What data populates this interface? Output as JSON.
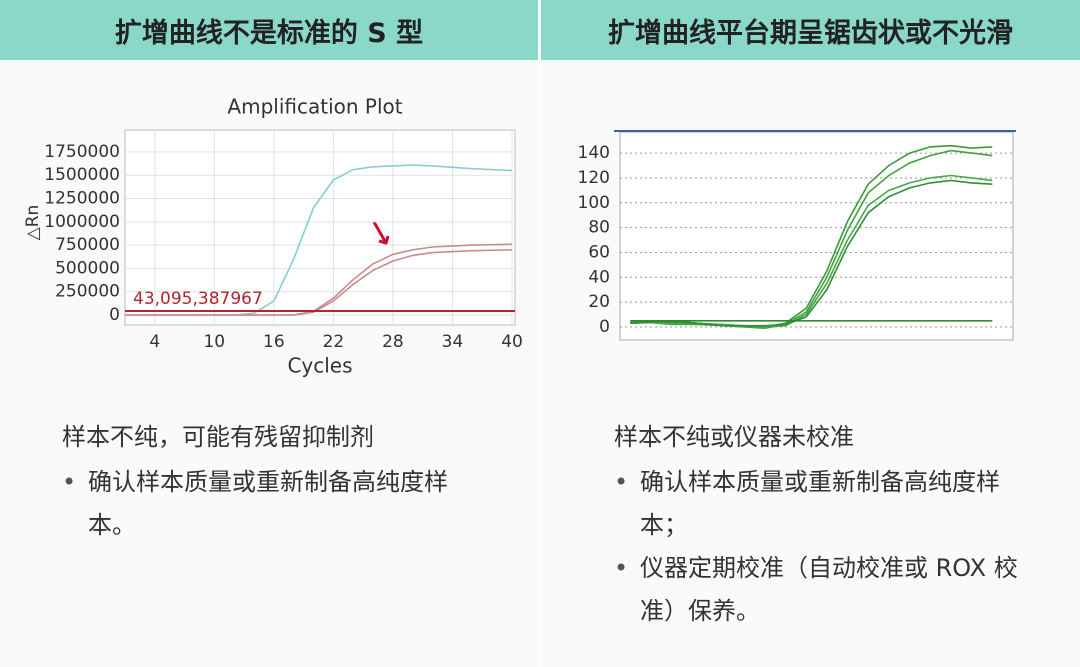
{
  "panels": [
    {
      "header": "扩增曲线不是标准的 S 型",
      "problem": "样本不纯，可能有残留抑制剂",
      "bullets": [
        "确认样本质量或重新制备高纯度样本。"
      ]
    },
    {
      "header": "扩增曲线平台期呈锯齿状或不光滑",
      "problem": "样本不纯或仪器未校准",
      "bullets": [
        "确认样本质量或重新制备高纯度样本；",
        "仪器定期校准（自动校准或 ROX 校准）保养。"
      ]
    }
  ],
  "chart_data": [
    {
      "type": "line",
      "title": "Amplification Plot",
      "x_label": "Cycles",
      "y_label": "△Rn",
      "xlim": [
        1,
        40.3
      ],
      "xticks": [
        4,
        10,
        16,
        22,
        28,
        34,
        40
      ],
      "ylim": [
        -107000,
        1985000
      ],
      "yticks": [
        0,
        250000,
        500000,
        750000,
        1000000,
        1250000,
        1500000,
        1750000
      ],
      "grid": true,
      "grid_style": "solid",
      "threshold": {
        "value": 43095.387967,
        "label": "43,095,387967",
        "color": "#b0262f"
      },
      "series": [
        {
          "color": "#86cdd3",
          "x": [
            1,
            4,
            8,
            12,
            14,
            16,
            18,
            20,
            22,
            24,
            26,
            28,
            30,
            32,
            36,
            40
          ],
          "values": [
            0,
            0,
            0,
            0,
            20000,
            150000,
            600000,
            1150000,
            1450000,
            1560000,
            1590000,
            1600000,
            1610000,
            1600000,
            1570000,
            1550000
          ]
        },
        {
          "color": "#c98a90",
          "x": [
            1,
            4,
            8,
            12,
            14,
            16,
            18,
            20,
            22,
            24,
            26,
            28,
            30,
            32,
            36,
            40
          ],
          "values": [
            0,
            0,
            0,
            0,
            0,
            0,
            0,
            30000,
            150000,
            330000,
            480000,
            580000,
            640000,
            670000,
            690000,
            700000
          ]
        },
        {
          "color": "#c98a90",
          "x": [
            1,
            4,
            8,
            12,
            14,
            16,
            18,
            20,
            22,
            24,
            26,
            28,
            30,
            32,
            36,
            40
          ],
          "values": [
            0,
            0,
            0,
            0,
            0,
            0,
            0,
            40000,
            180000,
            380000,
            550000,
            650000,
            700000,
            730000,
            750000,
            760000
          ]
        }
      ]
    },
    {
      "type": "line",
      "xlim": [
        0,
        38
      ],
      "ylim": [
        -10.5,
        157
      ],
      "yticks": [
        0,
        20,
        40,
        60,
        80,
        100,
        120,
        140
      ],
      "grid": true,
      "grid_style": "dotted",
      "series": [
        {
          "color": "#3a9a3a",
          "x": [
            1,
            5,
            10,
            14,
            16,
            18,
            20,
            22,
            24,
            26,
            28,
            30,
            32,
            34,
            36
          ],
          "values": [
            3,
            4,
            2,
            0,
            3,
            15,
            45,
            85,
            115,
            130,
            140,
            145,
            146,
            144,
            145
          ]
        },
        {
          "color": "#3fa340",
          "x": [
            1,
            5,
            10,
            14,
            16,
            18,
            20,
            22,
            24,
            26,
            28,
            30,
            32,
            34,
            36
          ],
          "values": [
            4,
            3,
            1,
            -1,
            2,
            12,
            40,
            78,
            108,
            122,
            132,
            138,
            142,
            140,
            138
          ]
        },
        {
          "color": "#48a848",
          "x": [
            1,
            5,
            10,
            14,
            16,
            18,
            20,
            22,
            24,
            26,
            28,
            30,
            32,
            34,
            36
          ],
          "values": [
            5,
            2,
            2,
            0,
            1,
            10,
            35,
            70,
            98,
            110,
            116,
            120,
            122,
            120,
            118
          ]
        },
        {
          "color": "#2f8f35",
          "x": [
            1,
            5,
            10,
            14,
            16,
            18,
            20,
            22,
            24,
            26,
            28,
            30,
            32,
            34,
            36
          ],
          "values": [
            3,
            5,
            1,
            1,
            2,
            8,
            30,
            65,
            92,
            105,
            112,
            116,
            118,
            116,
            115
          ]
        },
        {
          "color": "#2e8b2e",
          "x": [
            1,
            36
          ],
          "values": [
            5,
            5
          ]
        }
      ]
    }
  ]
}
